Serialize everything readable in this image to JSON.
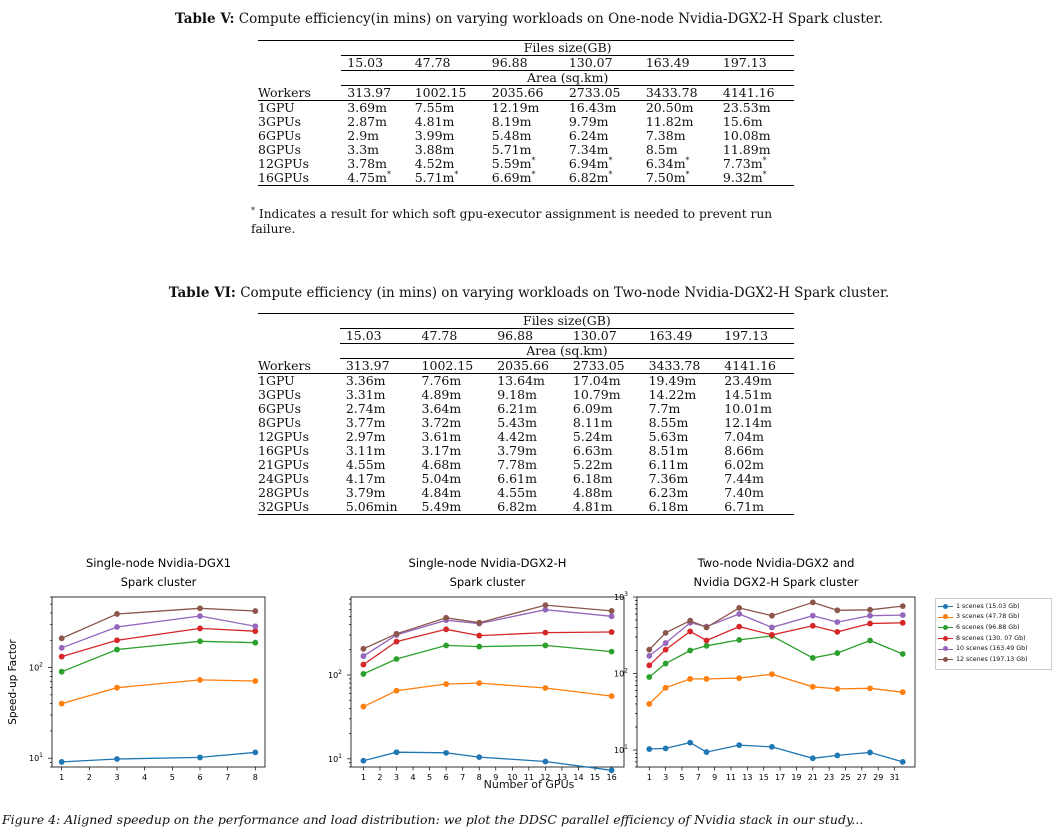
{
  "tables": [
    {
      "label": "Table V:",
      "caption": "Compute efficiency(in mins) on varying workloads on One-node Nvidia-DGX2-H Spark cluster.",
      "files_header": "Files size(GB)",
      "files": [
        "15.03",
        "47.78",
        "96.88",
        "130.07",
        "163.49",
        "197.13"
      ],
      "area_header": "Area (sq.km)",
      "workers_label": "Workers",
      "areas": [
        "313.97",
        "1002.15",
        "2035.66",
        "2733.05",
        "3433.78",
        "4141.16"
      ],
      "rows": [
        {
          "worker": "1GPU",
          "cells": [
            {
              "v": "3.69m"
            },
            {
              "v": "7.55m"
            },
            {
              "v": "12.19m"
            },
            {
              "v": "16.43m"
            },
            {
              "v": "20.50m"
            },
            {
              "v": "23.53m"
            }
          ]
        },
        {
          "worker": "3GPUs",
          "cells": [
            {
              "v": "2.87m"
            },
            {
              "v": "4.81m"
            },
            {
              "v": "8.19m"
            },
            {
              "v": "9.79m"
            },
            {
              "v": "11.82m"
            },
            {
              "v": "15.6m"
            }
          ]
        },
        {
          "worker": "6GPUs",
          "cells": [
            {
              "v": "2.9m"
            },
            {
              "v": "3.99m"
            },
            {
              "v": "5.48m"
            },
            {
              "v": "6.24m"
            },
            {
              "v": "7.38m"
            },
            {
              "v": "10.08m"
            }
          ]
        },
        {
          "worker": "8GPUs",
          "cells": [
            {
              "v": "3.3m"
            },
            {
              "v": "3.88m"
            },
            {
              "v": "5.71m"
            },
            {
              "v": "7.34m"
            },
            {
              "v": "8.5m"
            },
            {
              "v": "11.89m"
            }
          ]
        },
        {
          "worker": "12GPUs",
          "cells": [
            {
              "v": "3.78m"
            },
            {
              "v": "4.52m"
            },
            {
              "v": "5.59m",
              "s": "*"
            },
            {
              "v": "6.94m",
              "s": "*"
            },
            {
              "v": "6.34m",
              "s": "*"
            },
            {
              "v": "7.73m",
              "s": "*"
            }
          ]
        },
        {
          "worker": "16GPUs",
          "cells": [
            {
              "v": "4.75m",
              "s": "*"
            },
            {
              "v": "5.71m",
              "s": "*"
            },
            {
              "v": "6.69m",
              "s": "*"
            },
            {
              "v": "6.82m",
              "s": "*"
            },
            {
              "v": "7.50m",
              "s": "*"
            },
            {
              "v": "9.32m",
              "s": "*"
            }
          ]
        }
      ],
      "footnote_mark": "*",
      "footnote": "Indicates a result for which soft gpu-executor assignment is needed to prevent run failure."
    },
    {
      "label": "Table VI:",
      "caption": "Compute efficiency (in mins) on varying workloads on Two-node Nvidia-DGX2-H Spark cluster.",
      "files_header": "Files size(GB)",
      "files": [
        "15.03",
        "47.78",
        "96.88",
        "130.07",
        "163.49",
        "197.13"
      ],
      "area_header": "Area (sq.km)",
      "workers_label": "Workers",
      "areas": [
        "313.97",
        "1002.15",
        "2035.66",
        "2733.05",
        "3433.78",
        "4141.16"
      ],
      "rows": [
        {
          "worker": "1GPU",
          "cells": [
            {
              "v": "3.36m"
            },
            {
              "v": "7.76m"
            },
            {
              "v": "13.64m"
            },
            {
              "v": "17.04m"
            },
            {
              "v": "19.49m"
            },
            {
              "v": "23.49m"
            }
          ]
        },
        {
          "worker": "3GPUs",
          "cells": [
            {
              "v": "3.31m"
            },
            {
              "v": "4.89m"
            },
            {
              "v": "9.18m"
            },
            {
              "v": "10.79m"
            },
            {
              "v": "14.22m"
            },
            {
              "v": "14.51m"
            }
          ]
        },
        {
          "worker": "6GPUs",
          "cells": [
            {
              "v": "2.74m"
            },
            {
              "v": "3.64m"
            },
            {
              "v": "6.21m"
            },
            {
              "v": "6.09m"
            },
            {
              "v": "7.7m"
            },
            {
              "v": "10.01m"
            }
          ]
        },
        {
          "worker": "8GPUs",
          "cells": [
            {
              "v": "3.77m"
            },
            {
              "v": "3.72m"
            },
            {
              "v": "5.43m"
            },
            {
              "v": "8.11m"
            },
            {
              "v": "8.55m"
            },
            {
              "v": "12.14m"
            }
          ]
        },
        {
          "worker": "12GPUs",
          "cells": [
            {
              "v": "2.97m"
            },
            {
              "v": "3.61m"
            },
            {
              "v": "4.42m"
            },
            {
              "v": "5.24m"
            },
            {
              "v": "5.63m"
            },
            {
              "v": "7.04m"
            }
          ]
        },
        {
          "worker": "16GPUs",
          "cells": [
            {
              "v": "3.11m"
            },
            {
              "v": "3.17m"
            },
            {
              "v": "3.79m"
            },
            {
              "v": "6.63m"
            },
            {
              "v": "8.51m"
            },
            {
              "v": "8.66m"
            }
          ]
        },
        {
          "worker": "21GPUs",
          "cells": [
            {
              "v": "4.55m"
            },
            {
              "v": "4.68m"
            },
            {
              "v": "7.78m"
            },
            {
              "v": "5.22m"
            },
            {
              "v": "6.11m"
            },
            {
              "v": "6.02m"
            }
          ]
        },
        {
          "worker": "24GPUs",
          "cells": [
            {
              "v": "4.17m"
            },
            {
              "v": "5.04m"
            },
            {
              "v": "6.61m"
            },
            {
              "v": "6.18m"
            },
            {
              "v": "7.36m"
            },
            {
              "v": "7.44m"
            }
          ]
        },
        {
          "worker": "28GPUs",
          "cells": [
            {
              "v": "3.79m"
            },
            {
              "v": "4.84m"
            },
            {
              "v": "4.55m"
            },
            {
              "v": "4.88m"
            },
            {
              "v": "6.23m"
            },
            {
              "v": "7.40m"
            }
          ]
        },
        {
          "worker": "32GPUs",
          "cells": [
            {
              "v": "5.06min"
            },
            {
              "v": "5.49m"
            },
            {
              "v": "6.82m"
            },
            {
              "v": "4.81m"
            },
            {
              "v": "6.18m"
            },
            {
              "v": "6.71m"
            }
          ]
        }
      ]
    }
  ],
  "chart_data": [
    {
      "type": "line",
      "title": [
        "Single-node Nvidia-DGX1",
        "Spark cluster"
      ],
      "ylabel": "Speed-up Factor",
      "xlabel": "Number of GPUs",
      "yscale": "log",
      "ylim": [
        8,
        600
      ],
      "xlim": [
        0.65,
        8.35
      ],
      "xticks": [
        "1",
        "2",
        "3",
        "4",
        "5",
        "6",
        "7",
        "8"
      ],
      "yticks": [
        "10^1",
        "10^2"
      ],
      "x": [
        1,
        3,
        6,
        8
      ],
      "series": [
        {
          "name": "1 scenes (15.03 Gb)",
          "values": [
            9.1,
            9.8,
            10.2,
            11.6
          ]
        },
        {
          "name": "3 scenes (47.78 Gb)",
          "values": [
            40,
            60,
            73,
            71
          ]
        },
        {
          "name": "6 scenes (96.88 Gb)",
          "values": [
            90,
            158,
            195,
            188
          ]
        },
        {
          "name": "8 scenes (130. 07 Gb)",
          "values": [
            132,
            200,
            270,
            252
          ]
        },
        {
          "name": "10 scenes (163.49 Gb)",
          "values": [
            165,
            280,
            370,
            285
          ]
        },
        {
          "name": "12 scenes (197.13 Gb)",
          "values": [
            210,
            390,
            450,
            420
          ]
        }
      ]
    },
    {
      "type": "line",
      "title": [
        "Single-node Nvidia-DGX2-H",
        "Spark cluster"
      ],
      "yscale": "log",
      "ylim": [
        8,
        850
      ],
      "xlim": [
        0.25,
        16.75
      ],
      "xticks": [
        "1",
        "2",
        "3",
        "4",
        "5",
        "6",
        "7",
        "8",
        "9",
        "10",
        "11",
        "12",
        "13",
        "14",
        "15",
        "16"
      ],
      "yticks": [
        "10^1",
        "10^2"
      ],
      "x": [
        1,
        3,
        6,
        8,
        12,
        16
      ],
      "series": [
        {
          "name": "1 scenes (15.03 Gb)",
          "values": [
            9.5,
            12,
            11.8,
            10.5,
            9.3,
            7.3
          ]
        },
        {
          "name": "3 scenes (47.78 Gb)",
          "values": [
            42,
            65,
            78,
            80,
            70,
            56
          ]
        },
        {
          "name": "6 scenes (96.88 Gb)",
          "values": [
            103,
            155,
            225,
            218,
            225,
            190
          ]
        },
        {
          "name": "8 scenes (130. 07 Gb)",
          "values": [
            133,
            250,
            350,
            295,
            320,
            325
          ]
        },
        {
          "name": "10 scenes (163.49 Gb)",
          "values": [
            168,
            300,
            450,
            410,
            600,
            500
          ]
        },
        {
          "name": "12 scenes (197.13 Gb)",
          "values": [
            205,
            310,
            480,
            420,
            680,
            580
          ]
        }
      ]
    },
    {
      "type": "line",
      "title": [
        "Two-node Nvidia-DGX2 and",
        "Nvidia DGX2-H Spark cluster"
      ],
      "yscale": "log",
      "ylim": [
        6,
        1000
      ],
      "xlim": [
        -0.5,
        33.5
      ],
      "xticks": [
        "1",
        "3",
        "5",
        "7",
        "9",
        "11",
        "13",
        "15",
        "17",
        "19",
        "21",
        "23",
        "25",
        "27",
        "29",
        "31"
      ],
      "yticks": [
        "10^1",
        "10^2",
        "10^3"
      ],
      "x": [
        1,
        3,
        6,
        8,
        12,
        16,
        21,
        24,
        28,
        32
      ],
      "series": [
        {
          "name": "1 scenes (15.03 Gb)",
          "values": [
            10.3,
            10.5,
            12.5,
            9.4,
            11.6,
            11,
            7.8,
            8.5,
            9.3,
            7
          ]
        },
        {
          "name": "3 scenes (47.78 Gb)",
          "values": [
            40,
            65,
            85,
            85,
            87,
            98,
            67,
            63,
            64,
            57
          ]
        },
        {
          "name": "6 scenes (96.88 Gb)",
          "values": [
            90,
            135,
            200,
            230,
            275,
            310,
            160,
            185,
            270,
            180
          ]
        },
        {
          "name": "8 scenes (130. 07 Gb)",
          "values": [
            128,
            205,
            355,
            270,
            410,
            320,
            420,
            350,
            450,
            460
          ]
        },
        {
          "name": "10 scenes (163.49 Gb)",
          "values": [
            170,
            250,
            460,
            410,
            600,
            400,
            570,
            470,
            570,
            580
          ]
        },
        {
          "name": "12 scenes (197.13 Gb)",
          "values": [
            205,
            340,
            490,
            400,
            720,
            570,
            850,
            670,
            680,
            760
          ]
        }
      ]
    }
  ],
  "colors": [
    "#1f77b4",
    "#ff7f0e",
    "#2ca02c",
    "#d62728",
    "#9467bd",
    "#8c564b"
  ],
  "figure_caption": "Figure 4: Aligned speedup on the performance and load distribution: we plot the DDSC parallel efficiency of Nvidia stack in our study..."
}
